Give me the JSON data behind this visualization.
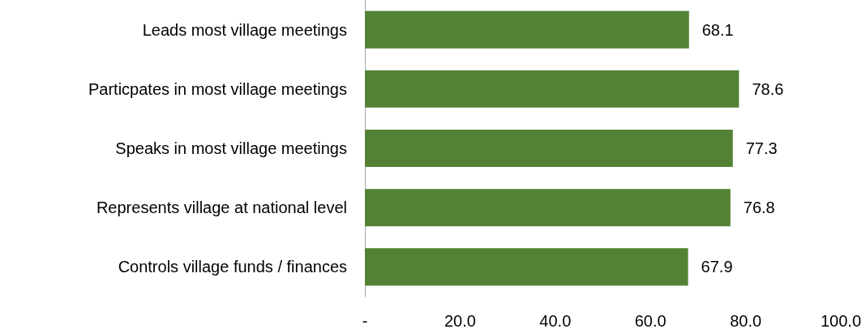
{
  "chart_data": {
    "type": "bar",
    "orientation": "horizontal",
    "categories": [
      "Leads most village meetings",
      "Particpates in most village meetings",
      "Speaks in most village meetings",
      "Represents village at national level",
      "Controls village funds / finances"
    ],
    "values": [
      68.1,
      78.6,
      77.3,
      76.8,
      67.9
    ],
    "color": "#548235",
    "xlim": [
      0,
      100
    ],
    "xticks": [
      {
        "value": 0,
        "label": "-"
      },
      {
        "value": 20,
        "label": "20.0"
      },
      {
        "value": 40,
        "label": "40.0"
      },
      {
        "value": 60,
        "label": "60.0"
      },
      {
        "value": 80,
        "label": "80.0"
      },
      {
        "value": 100,
        "label": "100.0"
      }
    ],
    "data_labels": true,
    "grid": false
  }
}
